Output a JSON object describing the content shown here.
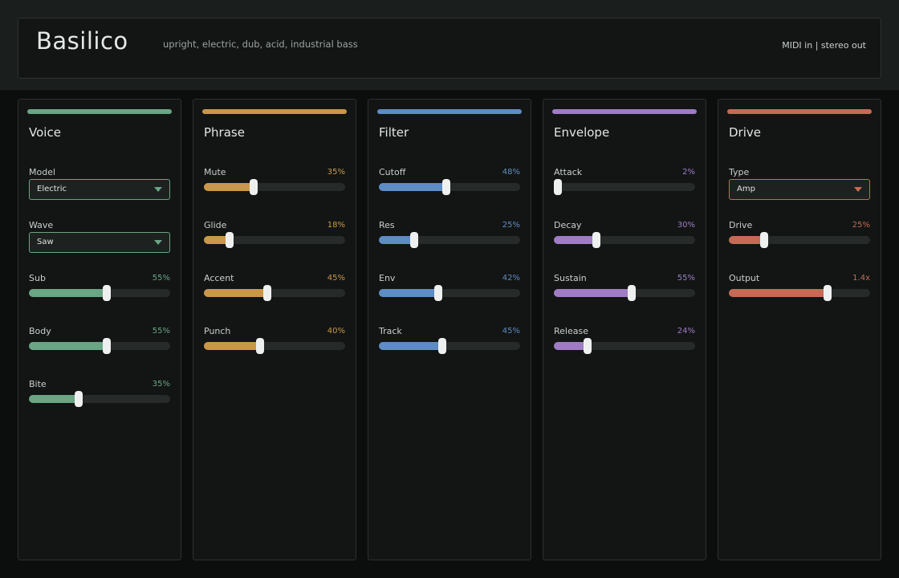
{
  "header": {
    "title": "Basilico",
    "subtitle": "upright, electric, dub, acid, industrial bass",
    "io": "MIDI in | stereo out"
  },
  "colors": {
    "voice": "#6aa584",
    "phrase": "#c9974a",
    "filter": "#5e8cc4",
    "envelope": "#a07cc4",
    "drive": "#c66a56"
  },
  "panels": [
    {
      "title": "Voice",
      "controls": [
        {
          "type": "select",
          "label": "Model",
          "value": "Electric"
        },
        {
          "type": "select",
          "label": "Wave",
          "value": "Saw"
        },
        {
          "type": "slider",
          "label": "Sub",
          "display": "55%",
          "level": 0.55
        },
        {
          "type": "slider",
          "label": "Body",
          "display": "55%",
          "level": 0.55
        },
        {
          "type": "slider",
          "label": "Bite",
          "display": "35%",
          "level": 0.35
        }
      ]
    },
    {
      "title": "Phrase",
      "controls": [
        {
          "type": "slider",
          "label": "Mute",
          "display": "35%",
          "level": 0.35
        },
        {
          "type": "slider",
          "label": "Glide",
          "display": "18%",
          "level": 0.18
        },
        {
          "type": "slider",
          "label": "Accent",
          "display": "45%",
          "level": 0.45
        },
        {
          "type": "slider",
          "label": "Punch",
          "display": "40%",
          "level": 0.4
        }
      ]
    },
    {
      "title": "Filter",
      "controls": [
        {
          "type": "slider",
          "label": "Cutoff",
          "display": "48%",
          "level": 0.48
        },
        {
          "type": "slider",
          "label": "Res",
          "display": "25%",
          "level": 0.25
        },
        {
          "type": "slider",
          "label": "Env",
          "display": "42%",
          "level": 0.42
        },
        {
          "type": "slider",
          "label": "Track",
          "display": "45%",
          "level": 0.45
        }
      ]
    },
    {
      "title": "Envelope",
      "controls": [
        {
          "type": "slider",
          "label": "Attack",
          "display": "2%",
          "level": 0.02
        },
        {
          "type": "slider",
          "label": "Decay",
          "display": "30%",
          "level": 0.3
        },
        {
          "type": "slider",
          "label": "Sustain",
          "display": "55%",
          "level": 0.55
        },
        {
          "type": "slider",
          "label": "Release",
          "display": "24%",
          "level": 0.24
        }
      ]
    },
    {
      "title": "Drive",
      "controls": [
        {
          "type": "select",
          "label": "Type",
          "value": "Amp"
        },
        {
          "type": "slider",
          "label": "Drive",
          "display": "25%",
          "level": 0.25
        },
        {
          "type": "slider",
          "label": "Output",
          "display": "1.4x",
          "level": 0.7
        }
      ]
    }
  ]
}
